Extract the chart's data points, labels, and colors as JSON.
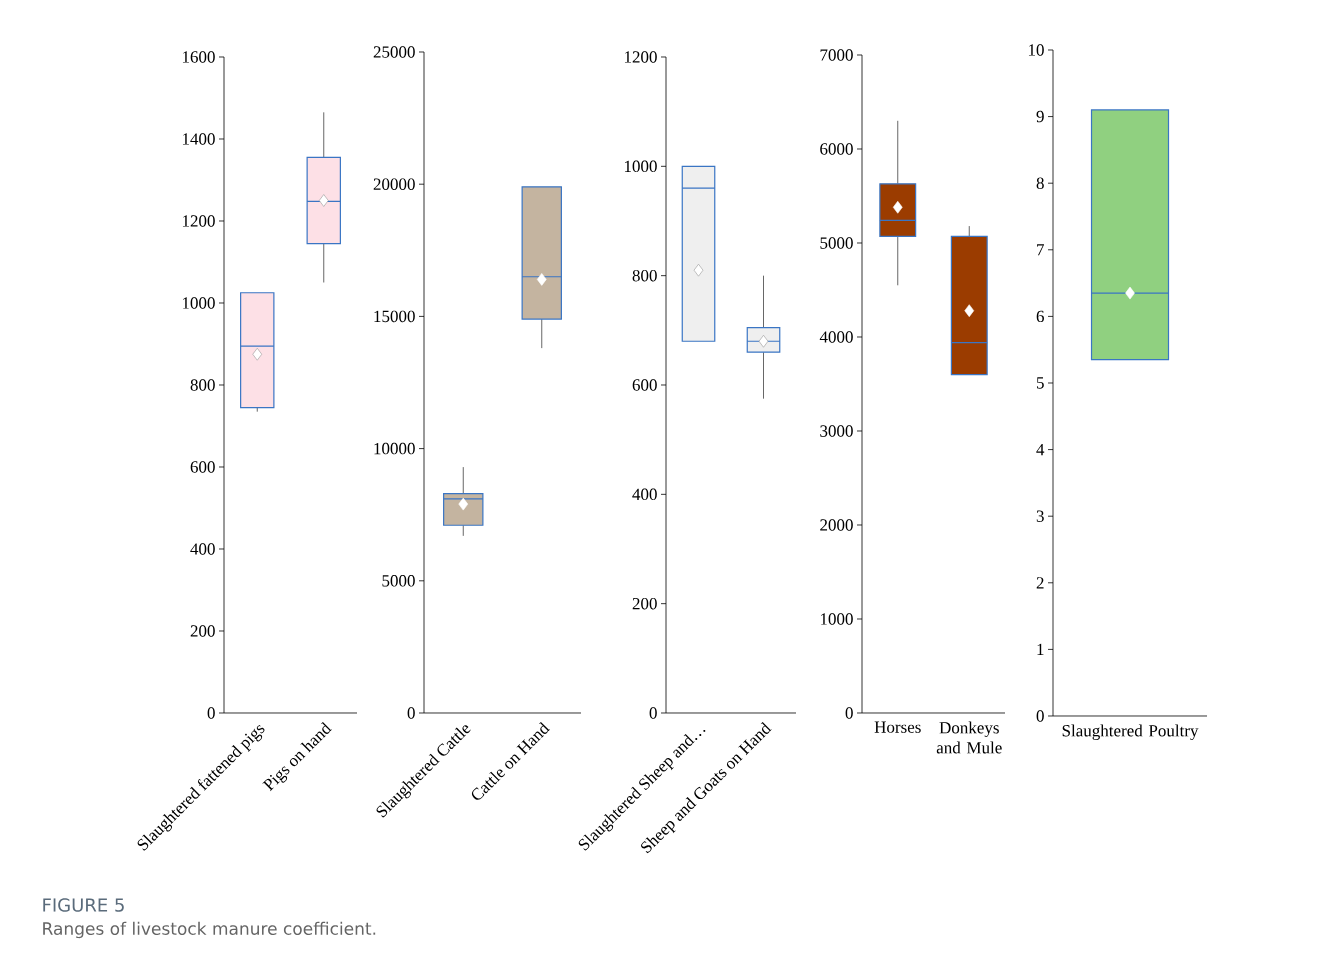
{
  "chart_data": [
    {
      "type": "box",
      "categories": [
        "Slaughtered fattened pigs",
        "Pigs on hand"
      ],
      "colors": [
        "#fde0e6",
        "#fde0e6"
      ],
      "ylim": [
        0,
        1600
      ],
      "yticks": [
        0,
        200,
        400,
        600,
        800,
        1000,
        1200,
        1400,
        1600
      ],
      "boxes": [
        {
          "low": 735,
          "q1": 745,
          "median": 895,
          "q3": 1025,
          "high": 1025,
          "mean": 875
        },
        {
          "low": 1050,
          "q1": 1145,
          "median": 1248,
          "q3": 1355,
          "high": 1465,
          "mean": 1250
        }
      ],
      "annotations": [
        "FIGURE 5",
        "Ranges of livestock manure coefficient."
      ]
    },
    {
      "type": "box",
      "categories": [
        "Slaughtered Cattle",
        "Cattle on Hand"
      ],
      "colors": [
        "#c4b4a0",
        "#c4b4a0"
      ],
      "ylim": [
        0,
        25000
      ],
      "yticks": [
        0,
        5000,
        10000,
        15000,
        20000,
        25000
      ],
      "boxes": [
        {
          "low": 6700,
          "q1": 7100,
          "median": 8100,
          "q3": 8300,
          "high": 9300,
          "mean": 7900
        },
        {
          "low": 13800,
          "q1": 14900,
          "median": 16500,
          "q3": 19900,
          "high": 19900,
          "mean": 16400
        }
      ]
    },
    {
      "type": "box",
      "categories": [
        "Slaughtered Sheep and…",
        "Sheep and Goats on Hand"
      ],
      "colors": [
        "#efefef",
        "#efefef"
      ],
      "ylim": [
        0,
        1200
      ],
      "yticks": [
        0,
        200,
        400,
        600,
        800,
        1000,
        1200
      ],
      "boxes": [
        {
          "low": 680,
          "q1": 680,
          "median": 960,
          "q3": 1000,
          "high": 1000,
          "mean": 810
        },
        {
          "low": 575,
          "q1": 660,
          "median": 680,
          "q3": 705,
          "high": 800,
          "mean": 680
        }
      ]
    },
    {
      "type": "box",
      "categories": [
        "Horses",
        "Donkeys and Mule"
      ],
      "colors": [
        "#9b3c00",
        "#9b3c00"
      ],
      "ylim": [
        0,
        7000
      ],
      "yticks": [
        0,
        1000,
        2000,
        3000,
        4000,
        5000,
        6000,
        7000
      ],
      "boxes": [
        {
          "low": 4550,
          "q1": 5070,
          "median": 5240,
          "q3": 5630,
          "high": 6300,
          "mean": 5380
        },
        {
          "low": 3600,
          "q1": 3600,
          "median": 3940,
          "q3": 5070,
          "high": 5180,
          "mean": 4280
        }
      ]
    },
    {
      "type": "box",
      "categories": [
        "Slaughtered Poultry"
      ],
      "colors": [
        "#90d080"
      ],
      "ylim": [
        0,
        10
      ],
      "yticks": [
        0,
        1,
        2,
        3,
        4,
        5,
        6,
        7,
        8,
        9,
        10
      ],
      "boxes": [
        {
          "low": 5.35,
          "q1": 5.35,
          "median": 6.35,
          "q3": 9.1,
          "high": 9.1,
          "mean": 6.35
        }
      ]
    }
  ]
}
